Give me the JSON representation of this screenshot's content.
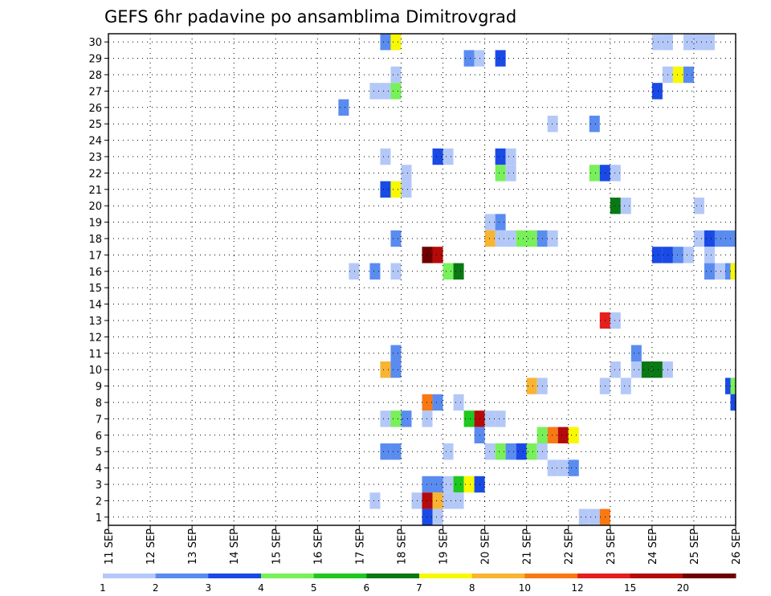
{
  "chart_data": {
    "type": "heatmap",
    "title": "GEFS 6hr padavine po ansamblima Dimitrovgrad",
    "xlabel": "",
    "ylabel": "",
    "x_tick_labels": [
      "11 SEP",
      "12 SEP",
      "13 SEP",
      "14 SEP",
      "15 SEP",
      "16 SEP",
      "17 SEP",
      "18 SEP",
      "19 SEP",
      "20 SEP",
      "21 SEP",
      "22 SEP",
      "23 SEP",
      "24 SEP",
      "25 SEP",
      "26 SEP"
    ],
    "y_tick_labels": [
      "1",
      "2",
      "3",
      "4",
      "5",
      "6",
      "7",
      "8",
      "9",
      "10",
      "11",
      "12",
      "13",
      "14",
      "15",
      "16",
      "17",
      "18",
      "19",
      "20",
      "21",
      "22",
      "23",
      "24",
      "25",
      "26",
      "27",
      "28",
      "29",
      "30"
    ],
    "xlim": [
      0,
      60
    ],
    "ylim": [
      0.5,
      30.5
    ],
    "grid": true,
    "time_step_hours": 6,
    "legend": {
      "placement": "bottom",
      "labels": [
        "1",
        "2",
        "3",
        "4",
        "5",
        "6",
        "7",
        "8",
        "10",
        "12",
        "15",
        "20"
      ],
      "colors": [
        "#b4c8f8",
        "#5a8cf0",
        "#1a4ae6",
        "#78f05a",
        "#1ec81e",
        "#0a7814",
        "#f8f800",
        "#f8b432",
        "#f87814",
        "#e61e1e",
        "#b40a0a",
        "#6e0000"
      ]
    },
    "cells": [
      {
        "x": 26.5,
        "y": 30,
        "v": 2
      },
      {
        "x": 27.5,
        "y": 30,
        "v": 7
      },
      {
        "x": 52.5,
        "y": 30,
        "v": 1
      },
      {
        "x": 53.5,
        "y": 30,
        "v": 1
      },
      {
        "x": 55.5,
        "y": 30,
        "v": 1
      },
      {
        "x": 56.5,
        "y": 30,
        "v": 1
      },
      {
        "x": 57.5,
        "y": 30,
        "v": 1
      },
      {
        "x": 34.5,
        "y": 29,
        "v": 2
      },
      {
        "x": 35.5,
        "y": 29,
        "v": 1
      },
      {
        "x": 37.5,
        "y": 29,
        "v": 3
      },
      {
        "x": 27.5,
        "y": 28,
        "v": 1
      },
      {
        "x": 53.5,
        "y": 28,
        "v": 1
      },
      {
        "x": 54.5,
        "y": 28,
        "v": 7
      },
      {
        "x": 55.5,
        "y": 28,
        "v": 2
      },
      {
        "x": 25.5,
        "y": 27,
        "v": 1
      },
      {
        "x": 26.5,
        "y": 27,
        "v": 1
      },
      {
        "x": 27.5,
        "y": 27,
        "v": 4
      },
      {
        "x": 52.5,
        "y": 27,
        "v": 3
      },
      {
        "x": 22.5,
        "y": 26,
        "v": 2
      },
      {
        "x": 42.5,
        "y": 25,
        "v": 1
      },
      {
        "x": 46.5,
        "y": 25,
        "v": 2
      },
      {
        "x": 26.5,
        "y": 23,
        "v": 1
      },
      {
        "x": 31.5,
        "y": 23,
        "v": 3
      },
      {
        "x": 32.5,
        "y": 23,
        "v": 1
      },
      {
        "x": 37.5,
        "y": 23,
        "v": 3
      },
      {
        "x": 38.5,
        "y": 23,
        "v": 1
      },
      {
        "x": 28.5,
        "y": 22,
        "v": 1
      },
      {
        "x": 37.5,
        "y": 22,
        "v": 4
      },
      {
        "x": 38.5,
        "y": 22,
        "v": 1
      },
      {
        "x": 46.5,
        "y": 22,
        "v": 4
      },
      {
        "x": 47.5,
        "y": 22,
        "v": 3
      },
      {
        "x": 48.5,
        "y": 22,
        "v": 1
      },
      {
        "x": 26.5,
        "y": 21,
        "v": 3
      },
      {
        "x": 27.5,
        "y": 21,
        "v": 7
      },
      {
        "x": 28.5,
        "y": 21,
        "v": 1
      },
      {
        "x": 48.5,
        "y": 20,
        "v": 6
      },
      {
        "x": 49.5,
        "y": 20,
        "v": 1
      },
      {
        "x": 56.5,
        "y": 20,
        "v": 1
      },
      {
        "x": 36.5,
        "y": 19,
        "v": 1
      },
      {
        "x": 37.5,
        "y": 19,
        "v": 2
      },
      {
        "x": 27.5,
        "y": 18,
        "v": 2
      },
      {
        "x": 36.5,
        "y": 18,
        "v": 8
      },
      {
        "x": 37.5,
        "y": 18,
        "v": 1
      },
      {
        "x": 38.5,
        "y": 18,
        "v": 1
      },
      {
        "x": 39.5,
        "y": 18,
        "v": 4
      },
      {
        "x": 40.5,
        "y": 18,
        "v": 4
      },
      {
        "x": 41.5,
        "y": 18,
        "v": 2
      },
      {
        "x": 42.5,
        "y": 18,
        "v": 1
      },
      {
        "x": 56.5,
        "y": 18,
        "v": 1
      },
      {
        "x": 57.5,
        "y": 18,
        "v": 3
      },
      {
        "x": 58.5,
        "y": 18,
        "v": 2
      },
      {
        "x": 59.5,
        "y": 18,
        "v": 2
      },
      {
        "x": 30.5,
        "y": 17,
        "v": 20
      },
      {
        "x": 31.5,
        "y": 17,
        "v": 15
      },
      {
        "x": 52.5,
        "y": 17,
        "v": 3
      },
      {
        "x": 53.5,
        "y": 17,
        "v": 3
      },
      {
        "x": 54.5,
        "y": 17,
        "v": 2
      },
      {
        "x": 55.5,
        "y": 17,
        "v": 1
      },
      {
        "x": 57.5,
        "y": 17,
        "v": 1
      },
      {
        "x": 23.5,
        "y": 16,
        "v": 1
      },
      {
        "x": 25.5,
        "y": 16,
        "v": 2
      },
      {
        "x": 27.5,
        "y": 16,
        "v": 1
      },
      {
        "x": 32.5,
        "y": 16,
        "v": 4
      },
      {
        "x": 33.5,
        "y": 16,
        "v": 6
      },
      {
        "x": 57.5,
        "y": 16,
        "v": 2
      },
      {
        "x": 58.5,
        "y": 16,
        "v": 1
      },
      {
        "x": 59.5,
        "y": 16,
        "v": 2
      },
      {
        "x": 60.0,
        "y": 16,
        "v": 7
      },
      {
        "x": 47.5,
        "y": 13,
        "v": 12
      },
      {
        "x": 48.5,
        "y": 13,
        "v": 1
      },
      {
        "x": 27.5,
        "y": 11,
        "v": 2
      },
      {
        "x": 50.5,
        "y": 11,
        "v": 2
      },
      {
        "x": 26.5,
        "y": 10,
        "v": 8
      },
      {
        "x": 27.5,
        "y": 10,
        "v": 2
      },
      {
        "x": 48.5,
        "y": 10,
        "v": 1
      },
      {
        "x": 50.5,
        "y": 10,
        "v": 1
      },
      {
        "x": 51.5,
        "y": 10,
        "v": 6
      },
      {
        "x": 52.5,
        "y": 10,
        "v": 6
      },
      {
        "x": 53.5,
        "y": 10,
        "v": 1
      },
      {
        "x": 40.5,
        "y": 9,
        "v": 8
      },
      {
        "x": 41.5,
        "y": 9,
        "v": 1
      },
      {
        "x": 47.5,
        "y": 9,
        "v": 1
      },
      {
        "x": 49.5,
        "y": 9,
        "v": 1
      },
      {
        "x": 59.5,
        "y": 9,
        "v": 3
      },
      {
        "x": 60.0,
        "y": 9,
        "v": 4
      },
      {
        "x": 30.5,
        "y": 8,
        "v": 10
      },
      {
        "x": 31.5,
        "y": 8,
        "v": 2
      },
      {
        "x": 33.5,
        "y": 8,
        "v": 1
      },
      {
        "x": 60.0,
        "y": 8,
        "v": 3
      },
      {
        "x": 26.5,
        "y": 7,
        "v": 1
      },
      {
        "x": 27.5,
        "y": 7,
        "v": 4
      },
      {
        "x": 28.5,
        "y": 7,
        "v": 2
      },
      {
        "x": 30.5,
        "y": 7,
        "v": 1
      },
      {
        "x": 34.5,
        "y": 7,
        "v": 5
      },
      {
        "x": 35.5,
        "y": 7,
        "v": 15
      },
      {
        "x": 36.5,
        "y": 7,
        "v": 1
      },
      {
        "x": 37.5,
        "y": 7,
        "v": 1
      },
      {
        "x": 35.5,
        "y": 6,
        "v": 2
      },
      {
        "x": 41.5,
        "y": 6,
        "v": 4
      },
      {
        "x": 42.5,
        "y": 6,
        "v": 10
      },
      {
        "x": 43.5,
        "y": 6,
        "v": 15
      },
      {
        "x": 44.5,
        "y": 6,
        "v": 7
      },
      {
        "x": 26.5,
        "y": 5,
        "v": 2
      },
      {
        "x": 27.5,
        "y": 5,
        "v": 2
      },
      {
        "x": 32.5,
        "y": 5,
        "v": 1
      },
      {
        "x": 36.5,
        "y": 5,
        "v": 1
      },
      {
        "x": 37.5,
        "y": 5,
        "v": 4
      },
      {
        "x": 38.5,
        "y": 5,
        "v": 2
      },
      {
        "x": 39.5,
        "y": 5,
        "v": 3
      },
      {
        "x": 40.5,
        "y": 5,
        "v": 4
      },
      {
        "x": 41.5,
        "y": 5,
        "v": 1
      },
      {
        "x": 42.5,
        "y": 4,
        "v": 1
      },
      {
        "x": 43.5,
        "y": 4,
        "v": 1
      },
      {
        "x": 44.5,
        "y": 4,
        "v": 2
      },
      {
        "x": 30.5,
        "y": 3,
        "v": 2
      },
      {
        "x": 31.5,
        "y": 3,
        "v": 2
      },
      {
        "x": 32.5,
        "y": 3,
        "v": 1
      },
      {
        "x": 33.5,
        "y": 3,
        "v": 5
      },
      {
        "x": 34.5,
        "y": 3,
        "v": 7
      },
      {
        "x": 35.5,
        "y": 3,
        "v": 3
      },
      {
        "x": 25.5,
        "y": 2,
        "v": 1
      },
      {
        "x": 29.5,
        "y": 2,
        "v": 1
      },
      {
        "x": 30.5,
        "y": 2,
        "v": 15
      },
      {
        "x": 31.5,
        "y": 2,
        "v": 8
      },
      {
        "x": 32.5,
        "y": 2,
        "v": 1
      },
      {
        "x": 33.5,
        "y": 2,
        "v": 1
      },
      {
        "x": 30.5,
        "y": 1,
        "v": 3
      },
      {
        "x": 31.5,
        "y": 1,
        "v": 1
      },
      {
        "x": 45.5,
        "y": 1,
        "v": 1
      },
      {
        "x": 46.5,
        "y": 1,
        "v": 1
      },
      {
        "x": 47.5,
        "y": 1,
        "v": 10
      }
    ]
  }
}
